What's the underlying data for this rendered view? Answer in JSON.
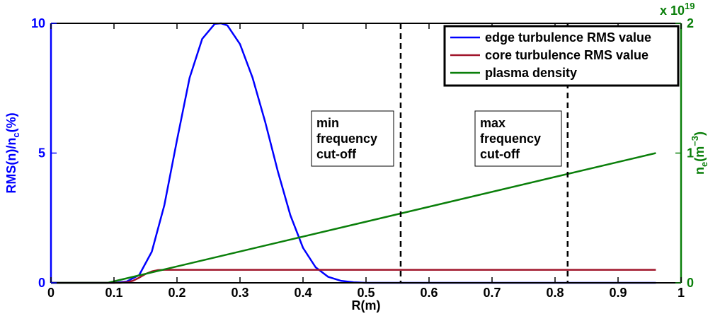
{
  "chart_data": {
    "type": "line",
    "xlabel": "R(m)",
    "ylabel_left": "RMS(n)/n",
    "ylabel_left_sub": "c",
    "ylabel_left_suffix": "(%)",
    "ylabel_right": "n",
    "ylabel_right_sub": "e",
    "ylabel_right_suffix_open": "(m",
    "ylabel_right_sup": "−3",
    "ylabel_right_suffix_close": ")",
    "xlim": [
      0,
      1
    ],
    "ylim_left": [
      0,
      10
    ],
    "ylim_right": [
      0,
      2
    ],
    "right_multiplier_base": "x 10",
    "right_multiplier_exp": "19",
    "x_ticks": [
      "0",
      "0.1",
      "0.2",
      "0.3",
      "0.4",
      "0.5",
      "0.6",
      "0.7",
      "0.8",
      "0.9",
      "1"
    ],
    "y_left_ticks": [
      "0",
      "5",
      "10"
    ],
    "y_right_ticks": [
      "0",
      "1",
      "2"
    ],
    "colors": {
      "edge": "#0000ff",
      "core": "#a0152a",
      "density": "#0a7f0a",
      "left_axis": "#0000ff",
      "right_axis": "#0a7f0a"
    },
    "legend_position": "top-right",
    "series": [
      {
        "name": "edge turbulence RMS value",
        "axis": "left",
        "x": [
          0.1,
          0.12,
          0.14,
          0.16,
          0.18,
          0.2,
          0.22,
          0.24,
          0.26,
          0.27,
          0.28,
          0.3,
          0.32,
          0.34,
          0.36,
          0.38,
          0.4,
          0.42,
          0.44,
          0.46,
          0.48,
          0.5,
          0.52,
          0.54,
          0.96
        ],
        "values": [
          0.0,
          0.05,
          0.3,
          1.2,
          3.0,
          5.5,
          7.9,
          9.4,
          9.98,
          10.0,
          9.92,
          9.2,
          7.9,
          6.2,
          4.3,
          2.6,
          1.35,
          0.6,
          0.23,
          0.08,
          0.02,
          0.0,
          0.0,
          0.0,
          0.0
        ]
      },
      {
        "name": "core turbulence RMS value",
        "axis": "left",
        "x": [
          0.1,
          0.11,
          0.12,
          0.13,
          0.14,
          0.15,
          0.16,
          0.17,
          0.18,
          0.96
        ],
        "values": [
          0.0,
          0.0,
          0.02,
          0.08,
          0.2,
          0.34,
          0.44,
          0.49,
          0.5,
          0.5
        ]
      },
      {
        "name": "plasma density",
        "axis": "right",
        "x": [
          0.0,
          0.09,
          0.96
        ],
        "values": [
          0.0,
          0.0,
          1.0
        ]
      }
    ],
    "cutoffs": [
      {
        "x": 0.555,
        "label_lines": [
          "min",
          "frequency",
          "cut-off"
        ]
      },
      {
        "x": 0.82,
        "label_lines": [
          "max",
          "frequency",
          "cut-off"
        ]
      }
    ]
  }
}
